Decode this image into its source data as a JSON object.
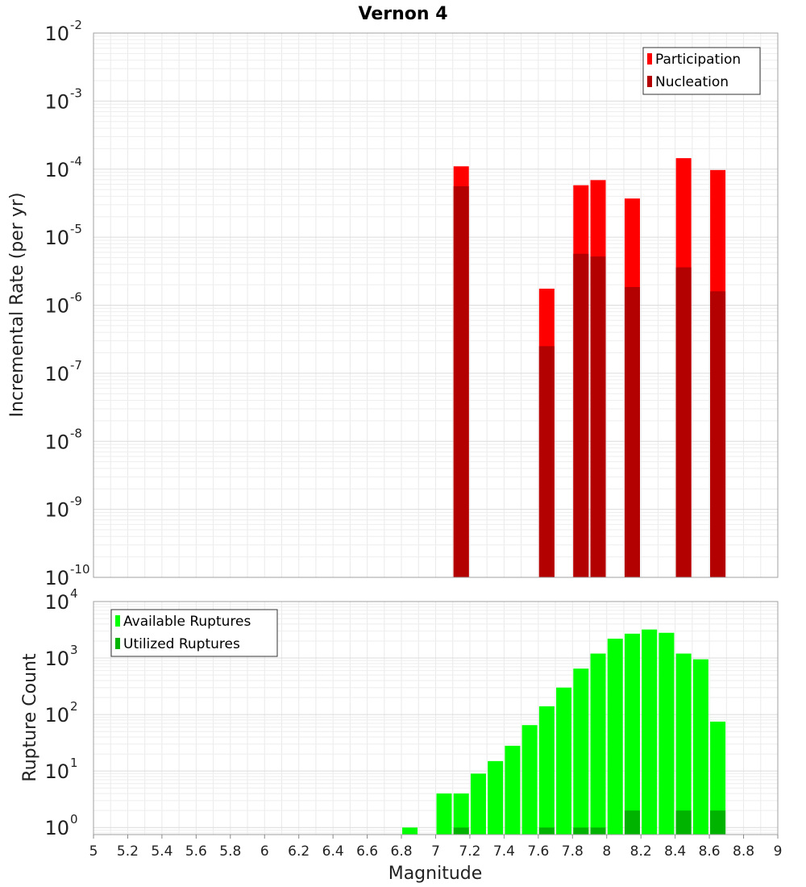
{
  "chart_data": [
    {
      "type": "bar",
      "title": "Vernon 4",
      "ylabel": "Incremental Rate (per yr)",
      "xlabel": "",
      "y_scale": "log",
      "xlim": [
        5,
        9
      ],
      "ylim": [
        1e-10,
        0.01
      ],
      "y_ticks": [
        {
          "base": "10",
          "exp": "-10",
          "value": 1e-10
        },
        {
          "base": "10",
          "exp": "-9",
          "value": 1e-09
        },
        {
          "base": "10",
          "exp": "-8",
          "value": 1e-08
        },
        {
          "base": "10",
          "exp": "-7",
          "value": 1e-07
        },
        {
          "base": "10",
          "exp": "-6",
          "value": 1e-06
        },
        {
          "base": "10",
          "exp": "-5",
          "value": 1e-05
        },
        {
          "base": "10",
          "exp": "-4",
          "value": 0.0001
        },
        {
          "base": "10",
          "exp": "-3",
          "value": 0.001
        },
        {
          "base": "10",
          "exp": "-2",
          "value": 0.01
        }
      ],
      "grid": true,
      "legend_position": "top-right",
      "series": [
        {
          "name": "Participation",
          "color": "#ff0000",
          "x": [
            7.15,
            7.65,
            7.85,
            7.95,
            8.15,
            8.45,
            8.65
          ],
          "values": [
            0.00011,
            1.75e-06,
            5.8e-05,
            6.9e-05,
            3.7e-05,
            0.000145,
            9.7e-05
          ]
        },
        {
          "name": "Nucleation",
          "color": "#b30000",
          "x": [
            7.15,
            7.65,
            7.85,
            7.95,
            8.15,
            8.45,
            8.65
          ],
          "values": [
            5.6e-05,
            2.5e-07,
            5.7e-06,
            5.2e-06,
            1.85e-06,
            3.6e-06,
            1.6e-06
          ]
        }
      ]
    },
    {
      "type": "bar",
      "title": "",
      "ylabel": "Rupture Count",
      "xlabel": "Magnitude",
      "y_scale": "log",
      "xlim": [
        5,
        9
      ],
      "ylim": [
        0.75,
        10000.0
      ],
      "x_ticks": [
        "5",
        "5.2",
        "5.4",
        "5.6",
        "5.8",
        "6",
        "6.2",
        "6.4",
        "6.6",
        "6.8",
        "7",
        "7.2",
        "7.4",
        "7.6",
        "7.8",
        "8",
        "8.2",
        "8.4",
        "8.6",
        "8.8",
        "9"
      ],
      "y_ticks": [
        {
          "base": "10",
          "exp": "0",
          "value": 1
        },
        {
          "base": "10",
          "exp": "1",
          "value": 10
        },
        {
          "base": "10",
          "exp": "2",
          "value": 100
        },
        {
          "base": "10",
          "exp": "3",
          "value": 1000
        },
        {
          "base": "10",
          "exp": "4",
          "value": 10000
        }
      ],
      "grid": true,
      "legend_position": "top-left",
      "series": [
        {
          "name": "Available Ruptures",
          "color": "#00ff00",
          "x": [
            6.85,
            7.05,
            7.15,
            7.25,
            7.35,
            7.45,
            7.55,
            7.65,
            7.75,
            7.85,
            7.95,
            8.05,
            8.15,
            8.25,
            8.35,
            8.45,
            8.55,
            8.65
          ],
          "values": [
            1,
            4,
            4,
            9,
            15,
            28,
            65,
            140,
            300,
            650,
            1200,
            2200,
            2700,
            3200,
            2800,
            1200,
            950,
            75
          ]
        },
        {
          "name": "Utilized Ruptures",
          "color": "#00b300",
          "x": [
            7.15,
            7.65,
            7.85,
            7.95,
            8.15,
            8.45,
            8.65
          ],
          "values": [
            1,
            1,
            1,
            1,
            2,
            2,
            2
          ]
        }
      ]
    }
  ]
}
